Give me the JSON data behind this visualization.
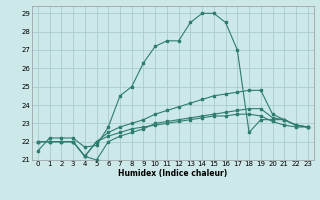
{
  "xlabel": "Humidex (Indice chaleur)",
  "bg_color": "#cce8e8",
  "grid_color": "#aacccc",
  "line_color": "#2e7d6e",
  "xlim": [
    -0.5,
    23.5
  ],
  "ylim": [
    21,
    29.4
  ],
  "xtick_labels": [
    "0",
    "1",
    "2",
    "3",
    "4",
    "5",
    "6",
    "7",
    "8",
    "9",
    "10",
    "11",
    "12",
    "13",
    "14",
    "15",
    "16",
    "17",
    "18",
    "19",
    "20",
    "21",
    "22",
    "23"
  ],
  "yticks": [
    21,
    22,
    23,
    24,
    25,
    26,
    27,
    28,
    29
  ],
  "series1": [
    21.5,
    22.2,
    22.2,
    22.2,
    21.7,
    21.8,
    22.8,
    24.5,
    25.0,
    26.3,
    27.2,
    27.5,
    27.5,
    28.5,
    29.0,
    29.0,
    28.5,
    27.0,
    22.5,
    23.2,
    23.2,
    23.2,
    22.9,
    22.8
  ],
  "series2": [
    22.0,
    22.0,
    22.0,
    22.0,
    21.2,
    21.0,
    22.0,
    22.3,
    22.5,
    22.7,
    23.0,
    23.1,
    23.2,
    23.3,
    23.4,
    23.5,
    23.6,
    23.7,
    23.8,
    23.8,
    23.3,
    23.2,
    22.9,
    22.8
  ],
  "series3": [
    22.0,
    22.0,
    22.0,
    22.0,
    21.2,
    22.0,
    22.5,
    22.8,
    23.0,
    23.2,
    23.5,
    23.7,
    23.9,
    24.1,
    24.3,
    24.5,
    24.6,
    24.7,
    24.8,
    24.8,
    23.5,
    23.2,
    22.9,
    22.8
  ],
  "series4": [
    22.0,
    22.0,
    22.0,
    22.0,
    21.2,
    22.0,
    22.3,
    22.5,
    22.7,
    22.8,
    22.9,
    23.0,
    23.1,
    23.2,
    23.3,
    23.4,
    23.4,
    23.5,
    23.5,
    23.4,
    23.1,
    22.9,
    22.8,
    22.8
  ]
}
